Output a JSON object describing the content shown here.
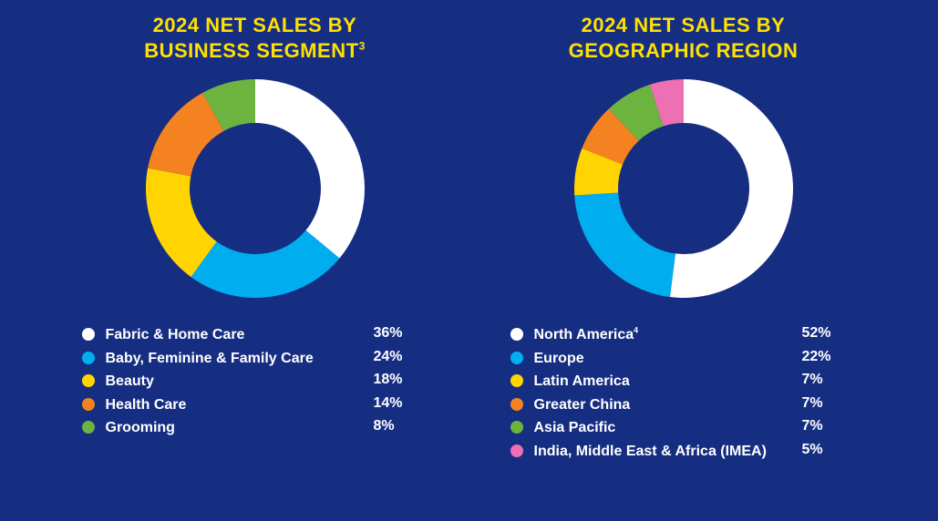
{
  "background_color": "#162e82",
  "title_color": "#ffe000",
  "text_color": "#ffffff",
  "title_fontsize": 22,
  "legend_fontsize": 16,
  "donut": {
    "outer_radius": 50,
    "inner_radius": 30,
    "start_angle_deg": 0,
    "direction": "clockwise"
  },
  "charts": [
    {
      "id": "segment",
      "title": "2024 NET SALES BY\nBUSINESS SEGMENT",
      "title_superscript": "3",
      "type": "donut",
      "slices": [
        {
          "label": "Fabric & Home Care",
          "value": 36,
          "color": "#ffffff"
        },
        {
          "label": "Baby, Feminine & Family Care",
          "value": 24,
          "color": "#00aeef"
        },
        {
          "label": "Beauty",
          "value": 18,
          "color": "#ffd400"
        },
        {
          "label": "Health Care",
          "value": 14,
          "color": "#f58220"
        },
        {
          "label": "Grooming",
          "value": 8,
          "color": "#6cb33f"
        }
      ]
    },
    {
      "id": "region",
      "title": "2024 NET SALES BY\nGEOGRAPHIC REGION",
      "title_superscript": "",
      "type": "donut",
      "slices": [
        {
          "label": "North America",
          "label_superscript": "4",
          "value": 52,
          "color": "#ffffff"
        },
        {
          "label": "Europe",
          "value": 22,
          "color": "#00aeef"
        },
        {
          "label": "Latin America",
          "value": 7,
          "color": "#ffd400"
        },
        {
          "label": "Greater China",
          "value": 7,
          "color": "#f58220"
        },
        {
          "label": "Asia Pacific",
          "value": 7,
          "color": "#6cb33f"
        },
        {
          "label": "India, Middle East & Africa (IMEA)",
          "value": 5,
          "color": "#ed6fb4"
        }
      ]
    }
  ]
}
